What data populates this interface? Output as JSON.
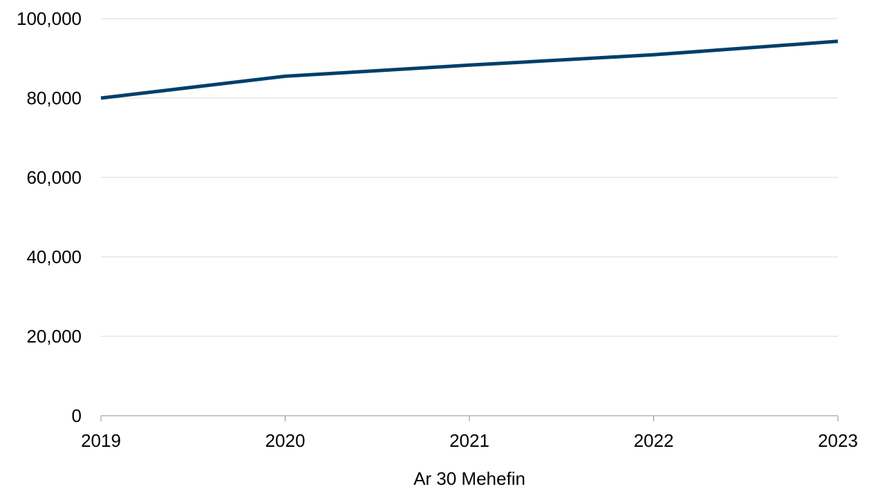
{
  "chart_data": {
    "type": "line",
    "title": "",
    "xlabel": "Ar 30 Mehefin",
    "ylabel": "",
    "categories": [
      "2019",
      "2020",
      "2021",
      "2022",
      "2023"
    ],
    "series": [
      {
        "values": [
          80000,
          85500,
          88300,
          90900,
          94300
        ],
        "color": "#003f6b"
      }
    ],
    "ylim": [
      0,
      100000
    ],
    "yticks": [
      0,
      20000,
      40000,
      60000,
      80000,
      100000
    ],
    "ytick_labels": [
      "0",
      "20,000",
      "40,000",
      "60,000",
      "80,000",
      "100,000"
    ],
    "grid": true,
    "legend": "none"
  }
}
